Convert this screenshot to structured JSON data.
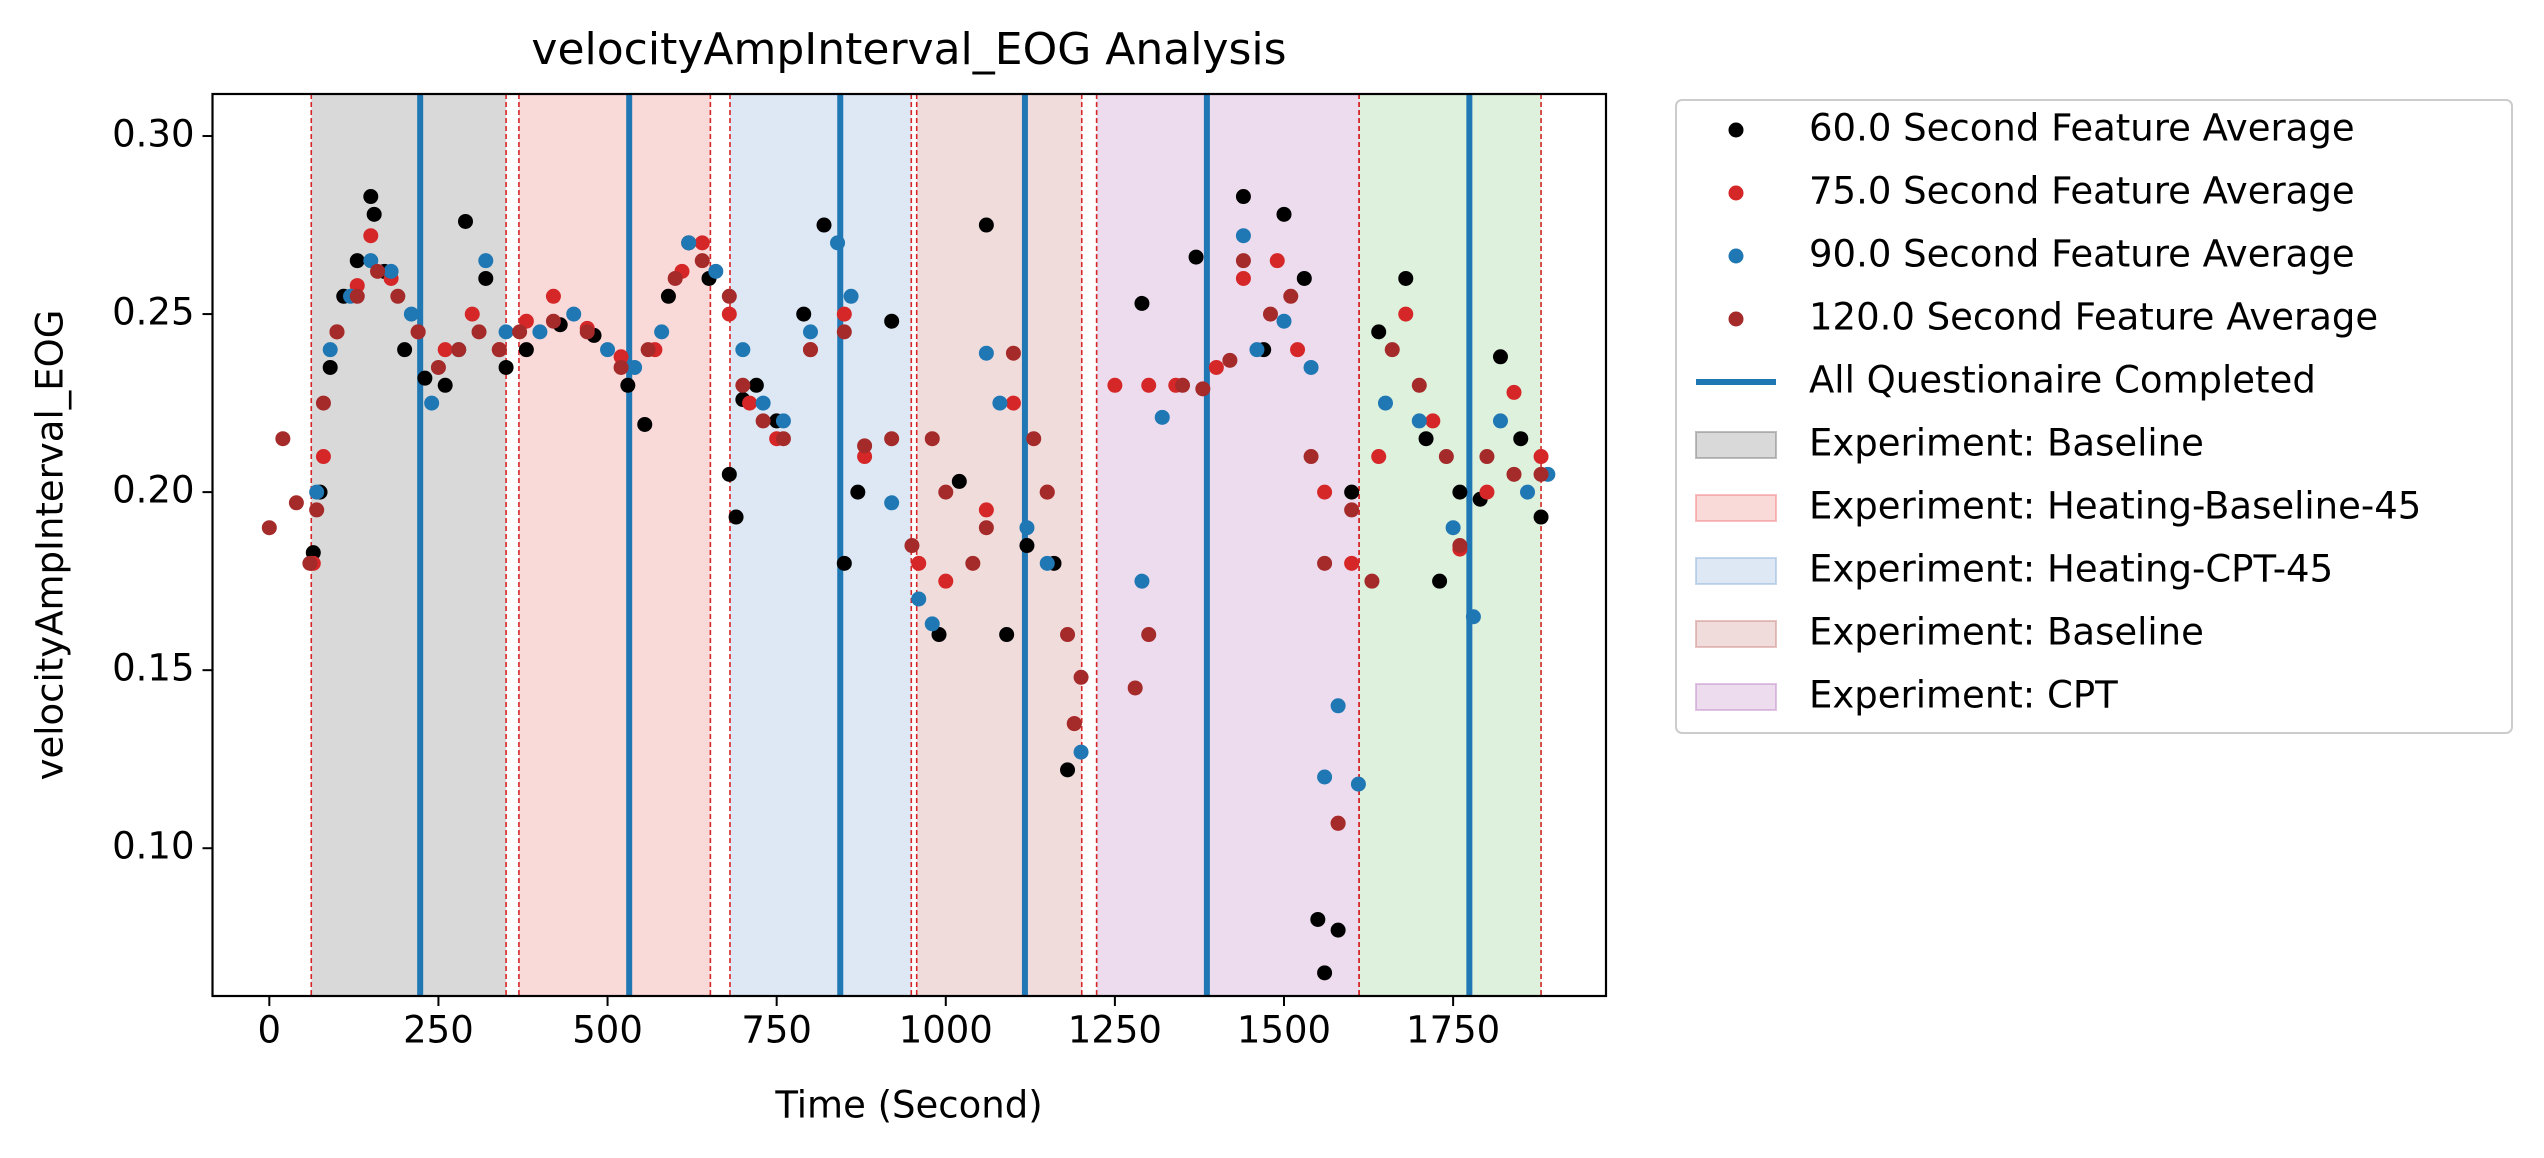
{
  "chart_data": {
    "type": "scatter",
    "title": "velocityAmpInterval_EOG Analysis",
    "x_label": "Time (Second)",
    "y_label": "velocityAmpInterval_EOG",
    "xlim": [
      -84,
      1976
    ],
    "ylim": [
      0.0585,
      0.3118
    ],
    "xticks": [
      0,
      250,
      500,
      750,
      1000,
      1250,
      1500,
      1750
    ],
    "yticks": [
      {
        "value": 0.1,
        "label": "0.10"
      },
      0.15,
      {
        "value": 0.2,
        "label": "0.20"
      },
      0.25,
      {
        "value": 0.3,
        "label": "0.30"
      }
    ],
    "series": [
      {
        "name": "60.0 Second Feature Average",
        "color": "#000000",
        "x": [
          65,
          75,
          90,
          110,
          130,
          150,
          155,
          170,
          200,
          230,
          260,
          290,
          320,
          350,
          380,
          430,
          480,
          530,
          555,
          590,
          620,
          650,
          680,
          690,
          700,
          720,
          750,
          790,
          820,
          850,
          870,
          920,
          990,
          1020,
          1060,
          1090,
          1120,
          1160,
          1180,
          1290,
          1370,
          1440,
          1470,
          1500,
          1530,
          1550,
          1560,
          1580,
          1600,
          1640,
          1680,
          1710,
          1730,
          1760,
          1790,
          1820,
          1850,
          1880
        ],
        "values": [
          0.183,
          0.2,
          0.235,
          0.255,
          0.265,
          0.283,
          0.278,
          0.262,
          0.24,
          0.232,
          0.23,
          0.276,
          0.26,
          0.235,
          0.24,
          0.247,
          0.244,
          0.23,
          0.219,
          0.255,
          0.27,
          0.26,
          0.205,
          0.193,
          0.226,
          0.23,
          0.22,
          0.25,
          0.275,
          0.18,
          0.2,
          0.248,
          0.16,
          0.203,
          0.275,
          0.16,
          0.185,
          0.18,
          0.122,
          0.253,
          0.266,
          0.283,
          0.24,
          0.278,
          0.26,
          0.08,
          0.065,
          0.077,
          0.2,
          0.245,
          0.26,
          0.215,
          0.175,
          0.2,
          0.198,
          0.238,
          0.215,
          0.193
        ]
      },
      {
        "name": "75.0 Second Feature Average",
        "color": "#d62728",
        "x": [
          65,
          80,
          100,
          130,
          150,
          180,
          220,
          260,
          300,
          340,
          380,
          420,
          470,
          520,
          570,
          610,
          640,
          680,
          710,
          750,
          800,
          850,
          880,
          960,
          1000,
          1060,
          1100,
          1150,
          1190,
          1250,
          1300,
          1340,
          1400,
          1440,
          1490,
          1520,
          1560,
          1580,
          1600,
          1640,
          1680,
          1720,
          1760,
          1800,
          1840,
          1880
        ],
        "values": [
          0.18,
          0.21,
          0.245,
          0.258,
          0.272,
          0.26,
          0.245,
          0.24,
          0.25,
          0.24,
          0.248,
          0.255,
          0.246,
          0.238,
          0.24,
          0.262,
          0.27,
          0.25,
          0.225,
          0.215,
          0.24,
          0.25,
          0.21,
          0.18,
          0.175,
          0.195,
          0.225,
          0.2,
          0.135,
          0.23,
          0.23,
          0.23,
          0.235,
          0.26,
          0.265,
          0.24,
          0.2,
          0.107,
          0.18,
          0.21,
          0.25,
          0.22,
          0.184,
          0.2,
          0.228,
          0.21
        ]
      },
      {
        "name": "90.0 Second Feature Average",
        "color": "#1f77b4",
        "x": [
          70,
          90,
          120,
          150,
          180,
          210,
          240,
          280,
          320,
          350,
          400,
          450,
          500,
          540,
          580,
          620,
          660,
          700,
          730,
          760,
          800,
          840,
          860,
          920,
          960,
          980,
          1060,
          1080,
          1120,
          1150,
          1200,
          1290,
          1320,
          1440,
          1460,
          1500,
          1540,
          1560,
          1580,
          1610,
          1650,
          1700,
          1750,
          1780,
          1820,
          1860,
          1890
        ],
        "values": [
          0.2,
          0.24,
          0.255,
          0.265,
          0.262,
          0.25,
          0.225,
          0.24,
          0.265,
          0.245,
          0.245,
          0.25,
          0.24,
          0.235,
          0.245,
          0.27,
          0.262,
          0.24,
          0.225,
          0.22,
          0.245,
          0.27,
          0.255,
          0.197,
          0.17,
          0.163,
          0.239,
          0.225,
          0.19,
          0.18,
          0.127,
          0.175,
          0.221,
          0.272,
          0.24,
          0.248,
          0.235,
          0.12,
          0.14,
          0.118,
          0.225,
          0.22,
          0.19,
          0.165,
          0.22,
          0.2,
          0.205
        ]
      },
      {
        "name": "120.0 Second Feature Average",
        "color": "#a52a2a",
        "x": [
          0,
          20,
          40,
          60,
          70,
          80,
          100,
          130,
          160,
          190,
          220,
          250,
          280,
          310,
          340,
          370,
          420,
          470,
          520,
          560,
          600,
          640,
          680,
          700,
          730,
          760,
          800,
          850,
          880,
          920,
          950,
          980,
          1000,
          1040,
          1060,
          1100,
          1130,
          1150,
          1180,
          1190,
          1200,
          1280,
          1300,
          1350,
          1380,
          1420,
          1440,
          1480,
          1510,
          1540,
          1560,
          1580,
          1600,
          1630,
          1660,
          1700,
          1740,
          1760,
          1800,
          1840,
          1880
        ],
        "values": [
          0.19,
          0.215,
          0.197,
          0.18,
          0.195,
          0.225,
          0.245,
          0.255,
          0.262,
          0.255,
          0.245,
          0.235,
          0.24,
          0.245,
          0.24,
          0.245,
          0.248,
          0.245,
          0.235,
          0.24,
          0.26,
          0.265,
          0.255,
          0.23,
          0.22,
          0.215,
          0.24,
          0.245,
          0.213,
          0.215,
          0.185,
          0.215,
          0.2,
          0.18,
          0.19,
          0.239,
          0.215,
          0.2,
          0.16,
          0.135,
          0.148,
          0.145,
          0.16,
          0.23,
          0.229,
          0.237,
          0.265,
          0.25,
          0.255,
          0.21,
          0.18,
          0.107,
          0.195,
          0.175,
          0.24,
          0.23,
          0.21,
          0.185,
          0.21,
          0.205,
          0.205
        ]
      }
    ],
    "completion_lines": {
      "name": "All Questionaire Completed",
      "color": "#1f77b4",
      "x": [
        223,
        532,
        844,
        1117,
        1386,
        1774
      ]
    },
    "regions": [
      {
        "label": "Experiment: Baseline",
        "start": 62,
        "end": 350,
        "color": "#808080"
      },
      {
        "label": "Experiment: Heating-Baseline-45",
        "start": 369,
        "end": 652,
        "color": "#f08080"
      },
      {
        "label": "Experiment: Heating-CPT-45",
        "start": 681,
        "end": 949,
        "color": "#8fb4d9"
      },
      {
        "label": "Experiment: Baseline",
        "start": 957,
        "end": 1201,
        "color": "#d08a8a"
      },
      {
        "label": "Experiment: CPT",
        "start": 1223,
        "end": 1611,
        "color": "#c08cc8"
      },
      {
        "label": null,
        "start": 1611,
        "end": 1880,
        "color": "#90d090"
      }
    ],
    "boundary_color": "#d62728",
    "legend": "outside-upper-right"
  }
}
